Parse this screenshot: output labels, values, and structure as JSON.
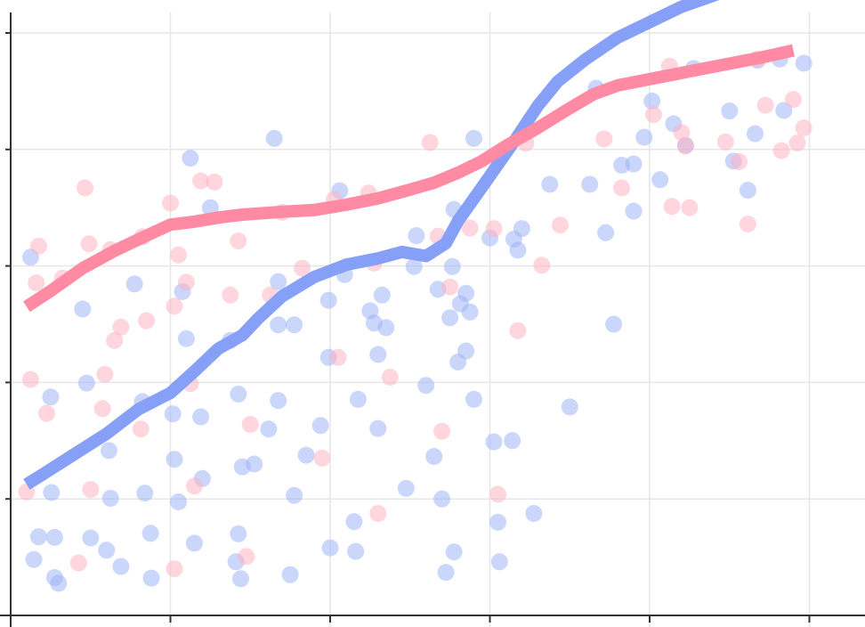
{
  "chart_data": {
    "type": "scatter",
    "title": "",
    "xlabel": "",
    "ylabel": "",
    "xlim": [
      0,
      100
    ],
    "ylim": [
      0,
      100
    ],
    "x_ticks": [
      20,
      40,
      60,
      80,
      100
    ],
    "y_ticks": [
      20,
      40,
      60,
      80,
      100
    ],
    "grid": true,
    "legend": "none",
    "colors": {
      "blue_points": "#9fb4f5",
      "red_points": "#ffb3c2",
      "blue_line": "#86a0f7",
      "red_line": "#ff8aa3",
      "grid": "#e6e6e6",
      "axis": "#333333"
    },
    "series": [
      {
        "points": [
          [
            2.5,
            61.5
          ],
          [
            2.9,
            9.6
          ],
          [
            3.5,
            13.5
          ],
          [
            5.0,
            37.5
          ],
          [
            5.1,
            21.1
          ],
          [
            5.5,
            6.5
          ],
          [
            5.5,
            13.4
          ],
          [
            6.0,
            5.5
          ],
          [
            9.0,
            52.6
          ],
          [
            9.5,
            39.9
          ],
          [
            10.0,
            13.3
          ],
          [
            12.0,
            11.2
          ],
          [
            12.3,
            28.3
          ],
          [
            12.5,
            20.1
          ],
          [
            13.8,
            8.4
          ],
          [
            15.5,
            56.9
          ],
          [
            16.5,
            36.7
          ],
          [
            16.8,
            21.0
          ],
          [
            17.5,
            14.1
          ],
          [
            17.6,
            6.4
          ],
          [
            20.3,
            34.6
          ],
          [
            20.5,
            26.8
          ],
          [
            21.5,
            55.6
          ],
          [
            21.0,
            19.5
          ],
          [
            22.0,
            47.5
          ],
          [
            22.5,
            78.5
          ],
          [
            23.0,
            12.4
          ],
          [
            23.8,
            34.1
          ],
          [
            24.0,
            23.5
          ],
          [
            25.0,
            70.0
          ],
          [
            27.5,
            47.2
          ],
          [
            28.5,
            38.0
          ],
          [
            28.5,
            14.0
          ],
          [
            29.0,
            25.5
          ],
          [
            28.2,
            9.2
          ],
          [
            28.8,
            6.3
          ],
          [
            30.5,
            26.0
          ],
          [
            32.3,
            32.0
          ],
          [
            33.5,
            36.9
          ],
          [
            33.0,
            81.9
          ],
          [
            33.5,
            57.3
          ],
          [
            33.5,
            49.9
          ],
          [
            35.5,
            49.9
          ],
          [
            35.5,
            20.6
          ],
          [
            35.0,
            7.0
          ],
          [
            37.0,
            27.5
          ],
          [
            38.8,
            32.6
          ],
          [
            39.8,
            44.3
          ],
          [
            39.8,
            54.1
          ],
          [
            40.0,
            11.6
          ],
          [
            41.2,
            72.9
          ],
          [
            41.8,
            58.5
          ],
          [
            43.0,
            16.1
          ],
          [
            43.2,
            11.0
          ],
          [
            43.5,
            37.1
          ],
          [
            45.0,
            52.3
          ],
          [
            45.5,
            50.2
          ],
          [
            46.0,
            44.8
          ],
          [
            46.0,
            32.1
          ],
          [
            46.5,
            55.0
          ],
          [
            47.0,
            49.4
          ],
          [
            49.5,
            21.8
          ],
          [
            50.8,
            65.2
          ],
          [
            50.5,
            59.9
          ],
          [
            52.0,
            39.5
          ],
          [
            53.5,
            56.0
          ],
          [
            53.0,
            27.3
          ],
          [
            54.0,
            20.0
          ],
          [
            54.5,
            7.4
          ],
          [
            55.5,
            10.9
          ],
          [
            55.0,
            51.1
          ],
          [
            55.3,
            59.9
          ],
          [
            55.5,
            69.7
          ],
          [
            56.0,
            43.5
          ],
          [
            56.3,
            53.5
          ],
          [
            57.0,
            45.4
          ],
          [
            57.0,
            55.3
          ],
          [
            57.5,
            52.1
          ],
          [
            58.0,
            81.9
          ],
          [
            58.0,
            37.1
          ],
          [
            60.0,
            64.8
          ],
          [
            60.5,
            29.8
          ],
          [
            61.0,
            16.0
          ],
          [
            61.2,
            9.2
          ],
          [
            62.8,
            30.0
          ],
          [
            63.0,
            64.6
          ],
          [
            63.5,
            62.7
          ],
          [
            64.0,
            66.4
          ],
          [
            65.5,
            17.5
          ],
          [
            67.5,
            74.0
          ],
          [
            70.0,
            35.8
          ],
          [
            72.5,
            74.0
          ],
          [
            73.3,
            90.5
          ],
          [
            74.5,
            65.7
          ],
          [
            75.5,
            50.0
          ],
          [
            76.5,
            77.3
          ],
          [
            78.0,
            77.5
          ],
          [
            78.0,
            69.4
          ],
          [
            79.3,
            82.1
          ],
          [
            80.3,
            88.3
          ],
          [
            81.3,
            74.8
          ],
          [
            83.0,
            84.4
          ],
          [
            84.5,
            80.7
          ],
          [
            85.5,
            93.9
          ],
          [
            90.0,
            86.6
          ],
          [
            90.5,
            78.0
          ],
          [
            92.3,
            73.0
          ],
          [
            93.2,
            82.7
          ],
          [
            93.5,
            95.3
          ],
          [
            96.3,
            95.5
          ],
          [
            96.8,
            86.7
          ],
          [
            99.3,
            94.8
          ]
        ]
      },
      {
        "points": [
          [
            2.0,
            21.2
          ],
          [
            2.5,
            40.5
          ],
          [
            3.5,
            63.4
          ],
          [
            3.2,
            57.1
          ],
          [
            4.5,
            34.7
          ],
          [
            6.5,
            57.9
          ],
          [
            8.5,
            9.0
          ],
          [
            9.3,
            73.4
          ],
          [
            9.8,
            63.8
          ],
          [
            10.0,
            21.6
          ],
          [
            11.5,
            35.5
          ],
          [
            11.8,
            41.4
          ],
          [
            12.5,
            62.8
          ],
          [
            13.0,
            47.2
          ],
          [
            13.8,
            49.5
          ],
          [
            16.3,
            32.0
          ],
          [
            16.5,
            65.0
          ],
          [
            17.0,
            50.6
          ],
          [
            20.0,
            70.8
          ],
          [
            20.5,
            53.1
          ],
          [
            20.5,
            8.0
          ],
          [
            21.0,
            61.9
          ],
          [
            22.0,
            57.2
          ],
          [
            22.5,
            39.8
          ],
          [
            23.0,
            22.2
          ],
          [
            23.8,
            74.6
          ],
          [
            25.5,
            74.4
          ],
          [
            27.5,
            55.0
          ],
          [
            28.5,
            64.3
          ],
          [
            29.5,
            10.1
          ],
          [
            30.0,
            32.8
          ],
          [
            32.5,
            55.0
          ],
          [
            34.0,
            69.2
          ],
          [
            36.5,
            59.6
          ],
          [
            39.0,
            27.0
          ],
          [
            40.5,
            71.4
          ],
          [
            41.0,
            44.3
          ],
          [
            44.8,
            72.5
          ],
          [
            45.5,
            60.5
          ],
          [
            46.0,
            17.5
          ],
          [
            47.5,
            40.9
          ],
          [
            52.5,
            81.2
          ],
          [
            53.5,
            65.1
          ],
          [
            54.0,
            31.6
          ],
          [
            55.0,
            56.4
          ],
          [
            57.5,
            66.5
          ],
          [
            60.5,
            66.4
          ],
          [
            61.0,
            20.8
          ],
          [
            63.5,
            48.9
          ],
          [
            64.5,
            81.1
          ],
          [
            66.5,
            60.1
          ],
          [
            68.8,
            67.0
          ],
          [
            74.3,
            81.8
          ],
          [
            76.5,
            73.4
          ],
          [
            80.5,
            86.0
          ],
          [
            82.5,
            94.3
          ],
          [
            82.8,
            70.2
          ],
          [
            84.0,
            82.9
          ],
          [
            84.5,
            80.6
          ],
          [
            85.0,
            70.0
          ],
          [
            89.5,
            81.3
          ],
          [
            91.2,
            77.9
          ],
          [
            92.3,
            67.2
          ],
          [
            93.5,
            95.5
          ],
          [
            94.5,
            87.6
          ],
          [
            96.5,
            79.8
          ],
          [
            98.0,
            88.6
          ],
          [
            98.5,
            81.1
          ],
          [
            99.3,
            83.7
          ]
        ]
      }
    ],
    "trend_lines": [
      {
        "points": [
          [
            2,
            22.5
          ],
          [
            4,
            24.2
          ],
          [
            8,
            27.7
          ],
          [
            12,
            31.2
          ],
          [
            16,
            35.4
          ],
          [
            20,
            38.2
          ],
          [
            23,
            41.9
          ],
          [
            26,
            45.8
          ],
          [
            29,
            48.1
          ],
          [
            31,
            51.0
          ],
          [
            34,
            54.8
          ],
          [
            38,
            58.1
          ],
          [
            42,
            60.2
          ],
          [
            46,
            61.3
          ],
          [
            49,
            62.4
          ],
          [
            52,
            61.7
          ],
          [
            54.5,
            63.9
          ],
          [
            56,
            67.7
          ],
          [
            59,
            73.5
          ],
          [
            63,
            81.3
          ],
          [
            66,
            87.5
          ],
          [
            68.5,
            91.7
          ],
          [
            72,
            95.5
          ],
          [
            76,
            99.2
          ],
          [
            84,
            104.5
          ],
          [
            90,
            107.4
          ],
          [
            98,
            113.0
          ]
        ]
      },
      {
        "points": [
          [
            2,
            53.0
          ],
          [
            5,
            55.7
          ],
          [
            9,
            59.6
          ],
          [
            13,
            62.6
          ],
          [
            17,
            65.2
          ],
          [
            20,
            67.1
          ],
          [
            23,
            67.6
          ],
          [
            26,
            68.3
          ],
          [
            29,
            68.8
          ],
          [
            34,
            69.3
          ],
          [
            38,
            69.6
          ],
          [
            42,
            70.5
          ],
          [
            46,
            71.6
          ],
          [
            50,
            73.1
          ],
          [
            53,
            74.3
          ],
          [
            56,
            76.0
          ],
          [
            59,
            78.0
          ],
          [
            62,
            80.6
          ],
          [
            66,
            83.7
          ],
          [
            70,
            87.1
          ],
          [
            73,
            89.5
          ],
          [
            76,
            91.0
          ],
          [
            82,
            92.6
          ],
          [
            88,
            94.2
          ],
          [
            94,
            95.8
          ],
          [
            98,
            97.0
          ]
        ]
      }
    ]
  }
}
